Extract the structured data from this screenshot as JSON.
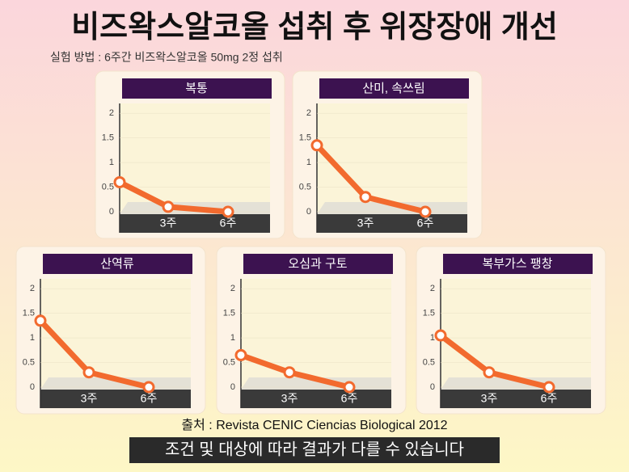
{
  "header": {
    "title": "비즈왁스알코올 섭취 후 위장장애 개선",
    "subtitle": "실험 방법 : 6주간 비즈왁스알코올 50mg 2정 섭취"
  },
  "chart_data": [
    {
      "type": "line",
      "title": "복통",
      "categories": [
        null,
        "3주",
        "6주"
      ],
      "values": [
        0.6,
        0.1,
        0
      ],
      "color": "#f26a2e",
      "ylim": [
        0,
        2.2
      ],
      "yticks": [
        0,
        0.5,
        1,
        1.5,
        2
      ]
    },
    {
      "type": "line",
      "title": "산미, 속쓰림",
      "categories": [
        null,
        "3주",
        "6주"
      ],
      "values": [
        1.35,
        0.3,
        0
      ],
      "color": "#f26a2e",
      "ylim": [
        0,
        2.2
      ],
      "yticks": [
        0,
        0.5,
        1,
        1.5,
        2
      ]
    },
    {
      "type": "line",
      "title": "산역류",
      "categories": [
        null,
        "3주",
        "6주"
      ],
      "values": [
        1.35,
        0.3,
        0
      ],
      "color": "#f26a2e",
      "ylim": [
        0,
        2.2
      ],
      "yticks": [
        0,
        0.5,
        1,
        1.5,
        2
      ]
    },
    {
      "type": "line",
      "title": "오심과 구토",
      "categories": [
        null,
        "3주",
        "6주"
      ],
      "values": [
        0.65,
        0.3,
        0
      ],
      "color": "#f26a2e",
      "ylim": [
        0,
        2.2
      ],
      "yticks": [
        0,
        0.5,
        1,
        1.5,
        2
      ]
    },
    {
      "type": "line",
      "title": "복부가스 팽창",
      "categories": [
        null,
        "3주",
        "6주"
      ],
      "values": [
        1.05,
        0.3,
        0
      ],
      "color": "#f26a2e",
      "ylim": [
        0,
        2.2
      ],
      "yticks": [
        0,
        0.5,
        1,
        1.5,
        2
      ]
    }
  ],
  "footer": {
    "source": "출처 : Revista CENIC Ciencias Biological 2012",
    "caption": "조건 및 대상에 따라 결과가 다를 수 있습니다"
  }
}
